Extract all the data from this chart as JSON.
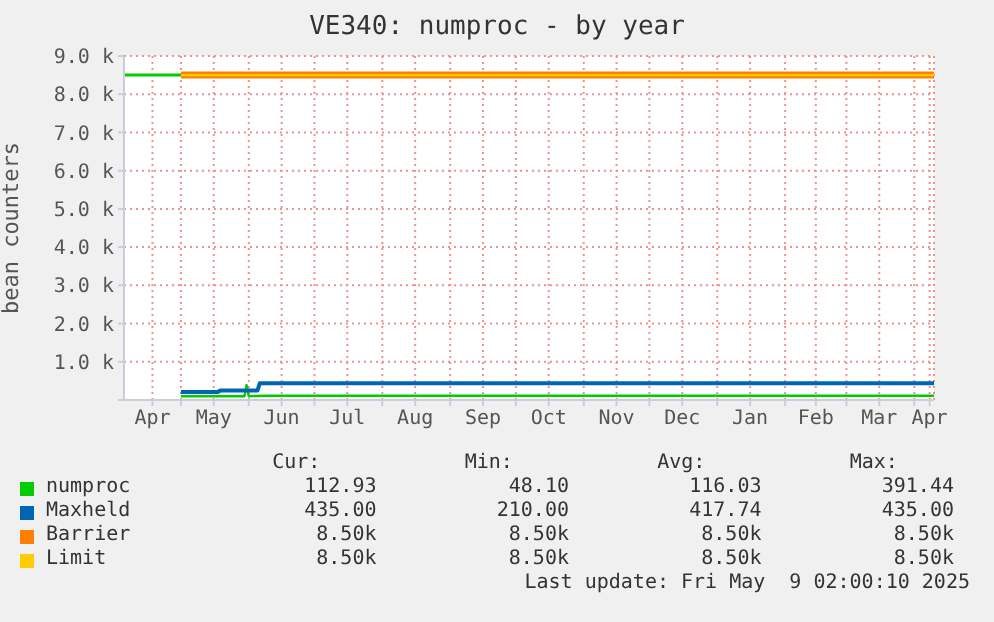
{
  "chart_data": {
    "type": "line",
    "title": "VE340: numproc - by year",
    "ylabel": "bean counters",
    "xlim": [
      "2024-04-05",
      "2025-04-10"
    ],
    "xticks": [
      {
        "value": "2024-04-18",
        "label": "Apr"
      },
      {
        "value": "2024-05-01",
        "label": null
      },
      {
        "value": "2024-05-16",
        "label": "May"
      },
      {
        "value": "2024-06-01",
        "label": null
      },
      {
        "value": "2024-06-16",
        "label": "Jun"
      },
      {
        "value": "2024-07-01",
        "label": null
      },
      {
        "value": "2024-07-16",
        "label": "Jul"
      },
      {
        "value": "2024-08-01",
        "label": null
      },
      {
        "value": "2024-08-16",
        "label": "Aug"
      },
      {
        "value": "2024-09-01",
        "label": null
      },
      {
        "value": "2024-09-16",
        "label": "Sep"
      },
      {
        "value": "2024-10-01",
        "label": null
      },
      {
        "value": "2024-10-16",
        "label": "Oct"
      },
      {
        "value": "2024-11-01",
        "label": null
      },
      {
        "value": "2024-11-16",
        "label": "Nov"
      },
      {
        "value": "2024-12-01",
        "label": null
      },
      {
        "value": "2024-12-16",
        "label": "Dec"
      },
      {
        "value": "2025-01-01",
        "label": null
      },
      {
        "value": "2025-01-16",
        "label": "Jan"
      },
      {
        "value": "2025-02-01",
        "label": null
      },
      {
        "value": "2025-02-15",
        "label": "Feb"
      },
      {
        "value": "2025-03-01",
        "label": null
      },
      {
        "value": "2025-03-16",
        "label": "Mar"
      },
      {
        "value": "2025-04-01",
        "label": null
      },
      {
        "value": "2025-04-08",
        "label": "Apr"
      }
    ],
    "ylim": [
      0,
      9000
    ],
    "yticks": [
      {
        "value": 0,
        "label": null
      },
      {
        "value": 1000,
        "label": "1.0 k"
      },
      {
        "value": 2000,
        "label": "2.0 k"
      },
      {
        "value": 3000,
        "label": "3.0 k"
      },
      {
        "value": 4000,
        "label": "4.0 k"
      },
      {
        "value": 5000,
        "label": "5.0 k"
      },
      {
        "value": 6000,
        "label": "6.0 k"
      },
      {
        "value": 7000,
        "label": "7.0 k"
      },
      {
        "value": 8000,
        "label": "8.0 k"
      },
      {
        "value": 9000,
        "label": "9.0 k"
      }
    ],
    "grid": true,
    "legend": "bottom",
    "marker": "none",
    "ref_lines": [
      {
        "axis": "y",
        "value": 8500,
        "label": null,
        "color": "#00cc00"
      }
    ],
    "series": [
      {
        "name": "numproc",
        "color": "#00cc00",
        "x": [
          "2024-05-01",
          "2024-05-30",
          "2024-05-31",
          "2024-06-01",
          "2024-06-10",
          "2025-04-10"
        ],
        "values": [
          100,
          100,
          391,
          100,
          112,
          112
        ]
      },
      {
        "name": "Maxheld",
        "color": "#0066b3",
        "x": [
          "2024-05-01",
          "2024-05-18",
          "2024-05-19",
          "2024-06-05",
          "2024-06-06",
          "2025-04-10"
        ],
        "values": [
          210,
          210,
          250,
          250,
          435,
          435
        ]
      },
      {
        "name": "Barrier",
        "color": "#ff8000",
        "x": [
          "2024-05-01",
          "2025-04-10"
        ],
        "values": [
          8500,
          8500
        ]
      },
      {
        "name": "Limit",
        "color": "#ffcc00",
        "x": [
          "2024-05-01",
          "2025-04-10"
        ],
        "values": [
          8500,
          8500
        ]
      }
    ],
    "annotations": [
      "Cur:",
      "Min:",
      "Avg:",
      "Max:",
      "112.93",
      "48.10",
      "116.03",
      "391.44",
      "435.00",
      "210.00",
      "417.74",
      "435.00",
      "8.50k",
      "8.50k",
      "8.50k",
      "8.50k",
      "8.50k",
      "8.50k",
      "8.50k",
      "8.50k",
      "Last update: Fri May  9 02:00:10 2025"
    ]
  }
}
